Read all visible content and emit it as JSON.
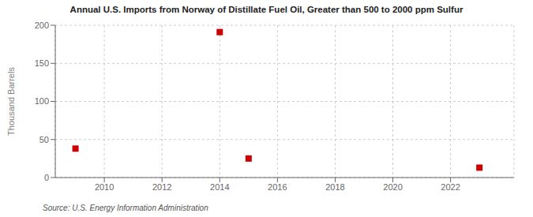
{
  "chart_data": {
    "type": "scatter",
    "title": "Annual U.S. Imports from Norway of Distillate Fuel Oil, Greater than 500 to 2000 ppm Sulfur",
    "ylabel": "Thousand Barrels",
    "annotation": "Source: U.S. Energy Information Administration",
    "x": [
      2009,
      2014,
      2015,
      2023
    ],
    "values": [
      38,
      191,
      25,
      13
    ],
    "color": "#cc0000",
    "marker": "square",
    "xlim": [
      2008.3,
      2024.2
    ],
    "xticks": [
      2010,
      2012,
      2014,
      2016,
      2018,
      2020,
      2022
    ],
    "ylim": [
      0,
      200
    ],
    "yticks": [
      0,
      50,
      100,
      150,
      200
    ],
    "grid": true
  }
}
